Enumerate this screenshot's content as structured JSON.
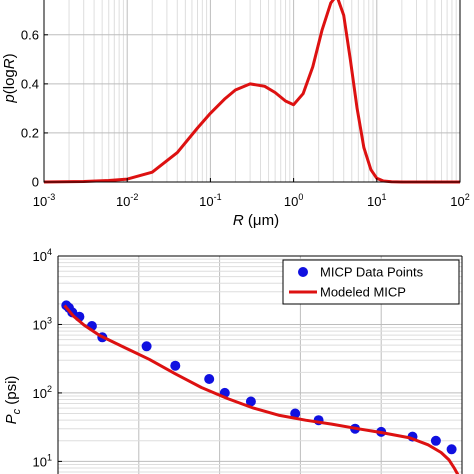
{
  "chart_data": [
    {
      "type": "line",
      "xscale": "log",
      "xlim": [
        0.001,
        100
      ],
      "ylim": [
        0,
        0.75
      ],
      "grid": true,
      "ylabel_parts": {
        "pre": "p",
        "paren_open": "(log",
        "var": "R",
        "paren_close": ")"
      },
      "xlabel_parts": {
        "var": "R",
        "unit": " (μm)"
      },
      "yticks": [
        {
          "value": 0,
          "label": "0"
        },
        {
          "value": 0.2,
          "label": "0.2"
        },
        {
          "value": 0.4,
          "label": "0.4"
        },
        {
          "value": 0.6,
          "label": "0.6"
        }
      ],
      "xticks": [
        {
          "value": 0.001,
          "base": "10",
          "exp": "-3"
        },
        {
          "value": 0.01,
          "base": "10",
          "exp": "-2"
        },
        {
          "value": 0.1,
          "base": "10",
          "exp": "-1"
        },
        {
          "value": 1,
          "base": "10",
          "exp": "0"
        },
        {
          "value": 10,
          "base": "10",
          "exp": "1"
        },
        {
          "value": 100,
          "base": "10",
          "exp": "2"
        }
      ],
      "series": [
        {
          "color": "#dd1111",
          "x": [
            0.001,
            0.003,
            0.006,
            0.01,
            0.02,
            0.04,
            0.07,
            0.1,
            0.15,
            0.2,
            0.3,
            0.45,
            0.6,
            0.8,
            1.0,
            1.3,
            1.7,
            2.2,
            2.8,
            3.3,
            4.0,
            4.8,
            5.8,
            7.0,
            8.5,
            10,
            12,
            15,
            20,
            40,
            100
          ],
          "y": [
            0.0,
            0.002,
            0.006,
            0.012,
            0.04,
            0.12,
            0.22,
            0.28,
            0.34,
            0.375,
            0.4,
            0.39,
            0.365,
            0.33,
            0.315,
            0.36,
            0.47,
            0.62,
            0.73,
            0.76,
            0.68,
            0.5,
            0.3,
            0.14,
            0.05,
            0.015,
            0.004,
            0.001,
            0.0,
            0.0,
            0.0
          ]
        }
      ]
    },
    {
      "type": "scatter",
      "xscale": "linear",
      "yscale": "log",
      "ylim": [
        5,
        10000
      ],
      "grid": true,
      "legend": "top-right",
      "ylabel_parts": {
        "var": "P",
        "sub": "c",
        "unit": " (psi)"
      },
      "yticks": [
        {
          "value": 10,
          "base": "10",
          "exp": "1"
        },
        {
          "value": 100,
          "base": "10",
          "exp": "2"
        },
        {
          "value": 1000,
          "base": "10",
          "exp": "3"
        },
        {
          "value": 10000,
          "base": "10",
          "exp": "4"
        }
      ],
      "series": [
        {
          "name": "MICP Data Points",
          "kind": "points",
          "color": "#1010e0",
          "x": [
            0.032,
            0.042,
            0.055,
            0.082,
            0.13,
            0.17,
            0.34,
            0.45,
            0.58,
            0.64,
            0.74,
            0.91,
            1.0,
            1.14,
            1.24,
            1.36,
            1.45,
            1.51
          ],
          "y": [
            1900,
            1750,
            1500,
            1300,
            950,
            650,
            480,
            250,
            160,
            100,
            75,
            50,
            40,
            30,
            27,
            23,
            20,
            15
          ]
        },
        {
          "name": "Modeled MICP",
          "kind": "line",
          "color": "#dd1111",
          "x": [
            0.025,
            0.04,
            0.06,
            0.1,
            0.16,
            0.25,
            0.35,
            0.45,
            0.55,
            0.65,
            0.75,
            0.85,
            0.95,
            1.05,
            1.15,
            1.25,
            1.35,
            1.42,
            1.47,
            1.5,
            1.52,
            1.55
          ],
          "y": [
            1900,
            1620,
            1320,
            980,
            690,
            470,
            310,
            190,
            120,
            83,
            60,
            47,
            40,
            35,
            30,
            26,
            22,
            17.5,
            13.5,
            10.5,
            8,
            5
          ]
        }
      ]
    }
  ]
}
